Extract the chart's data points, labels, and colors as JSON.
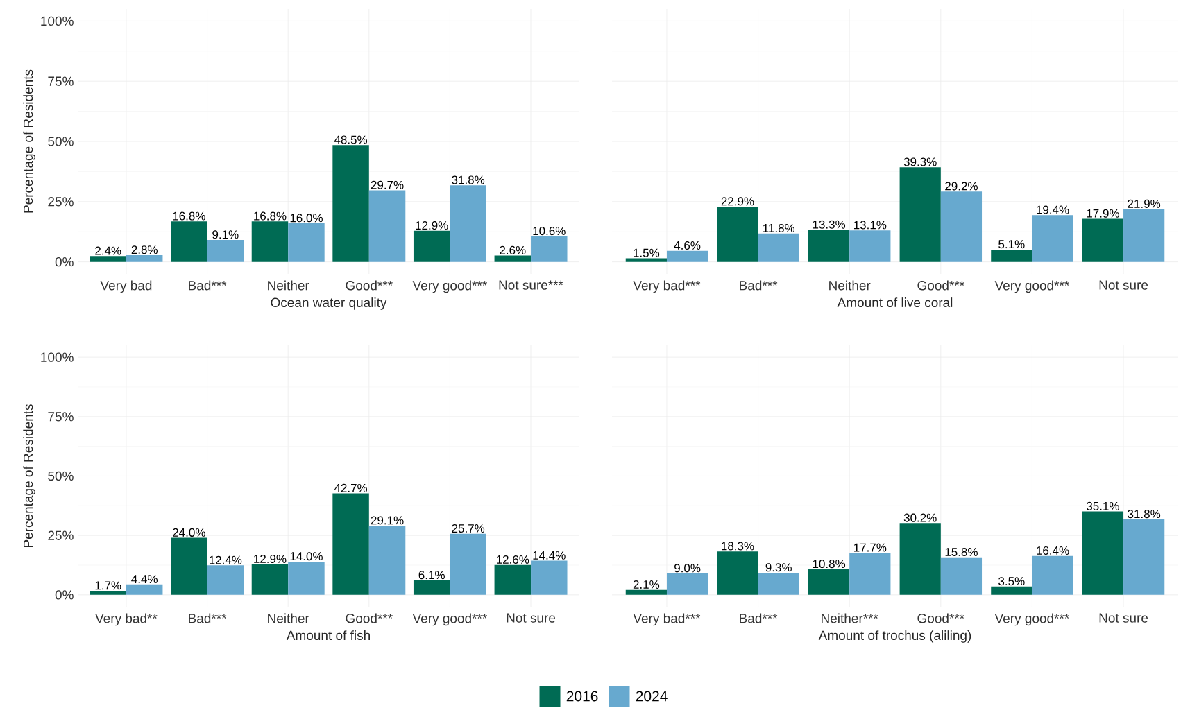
{
  "chart_data": [
    {
      "type": "bar",
      "xlabel": "Ocean water quality",
      "ylabel": "Percentage of Residents",
      "categories": [
        "Very bad",
        "Bad***",
        "Neither",
        "Good***",
        "Very good***",
        "Not sure***"
      ],
      "ylim": [
        -5,
        105
      ],
      "yticks": [
        {
          "value": 0,
          "label": "0%"
        },
        {
          "value": 25,
          "label": "25%"
        },
        {
          "value": 50,
          "label": "50%"
        },
        {
          "value": 75,
          "label": "75%"
        },
        {
          "value": 100,
          "label": "100%"
        }
      ],
      "grid": true,
      "legend": "bottom",
      "series": [
        {
          "name": "2016",
          "color": "#006b54",
          "values": [
            2.4,
            16.8,
            16.8,
            48.5,
            12.9,
            2.6
          ],
          "value_labels": [
            "2.4%",
            "16.8%",
            "16.8%",
            "48.5%",
            "12.9%",
            "2.6%"
          ]
        },
        {
          "name": "2024",
          "color": "#67a9cf",
          "values": [
            2.8,
            9.1,
            16.0,
            29.7,
            31.8,
            10.6
          ],
          "value_labels": [
            "2.8%",
            "9.1%",
            "16.0%",
            "29.7%",
            "31.8%",
            "10.6%"
          ]
        }
      ]
    },
    {
      "type": "bar",
      "xlabel": "Amount of live coral",
      "categories": [
        "Very bad***",
        "Bad***",
        "Neither",
        "Good***",
        "Very good***",
        "Not sure"
      ],
      "ylim": [
        -5,
        105
      ],
      "yticks": [
        {
          "value": 0,
          "label": null
        },
        {
          "value": 25,
          "label": null
        },
        {
          "value": 50,
          "label": null
        },
        {
          "value": 75,
          "label": null
        },
        {
          "value": 100,
          "label": null
        }
      ],
      "tick_labels": "x",
      "grid": true,
      "series": [
        {
          "color": "#006b54",
          "values": [
            1.5,
            22.9,
            13.3,
            39.3,
            5.1,
            17.9
          ],
          "value_labels": [
            "1.5%",
            "22.9%",
            "13.3%",
            "39.3%",
            "5.1%",
            "17.9%"
          ]
        },
        {
          "color": "#67a9cf",
          "values": [
            4.6,
            11.8,
            13.1,
            29.2,
            19.4,
            21.9
          ],
          "value_labels": [
            "4.6%",
            "11.8%",
            "13.1%",
            "29.2%",
            "19.4%",
            "21.9%"
          ]
        }
      ]
    },
    {
      "type": "bar",
      "xlabel": "Amount of fish",
      "ylabel": "Percentage of Residents",
      "categories": [
        "Very bad**",
        "Bad***",
        "Neither",
        "Good***",
        "Very good***",
        "Not sure"
      ],
      "ylim": [
        -5,
        105
      ],
      "yticks": [
        {
          "value": 0,
          "label": "0%"
        },
        {
          "value": 25,
          "label": "25%"
        },
        {
          "value": 50,
          "label": "50%"
        },
        {
          "value": 75,
          "label": "75%"
        },
        {
          "value": 100,
          "label": "100%"
        }
      ],
      "grid": true,
      "series": [
        {
          "color": "#006b54",
          "values": [
            1.7,
            24.0,
            12.9,
            42.7,
            6.1,
            12.6
          ],
          "value_labels": [
            "1.7%",
            "24.0%",
            "12.9%",
            "42.7%",
            "6.1%",
            "12.6%"
          ]
        },
        {
          "color": "#67a9cf",
          "values": [
            4.4,
            12.4,
            14.0,
            29.1,
            25.7,
            14.4
          ],
          "value_labels": [
            "4.4%",
            "12.4%",
            "14.0%",
            "29.1%",
            "25.7%",
            "14.4%"
          ]
        }
      ]
    },
    {
      "type": "bar",
      "xlabel": "Amount of trochus (aliling)",
      "categories": [
        "Very bad***",
        "Bad***",
        "Neither***",
        "Good***",
        "Very good***",
        "Not sure"
      ],
      "ylim": [
        -5,
        105
      ],
      "yticks": [
        {
          "value": 0,
          "label": null
        },
        {
          "value": 25,
          "label": null
        },
        {
          "value": 50,
          "label": null
        },
        {
          "value": 75,
          "label": null
        },
        {
          "value": 100,
          "label": null
        }
      ],
      "tick_labels": "x",
      "grid": true,
      "series": [
        {
          "color": "#006b54",
          "values": [
            2.1,
            18.3,
            10.8,
            30.2,
            3.5,
            35.1
          ],
          "value_labels": [
            "2.1%",
            "18.3%",
            "10.8%",
            "30.2%",
            "3.5%",
            "35.1%"
          ]
        },
        {
          "color": "#67a9cf",
          "values": [
            9.0,
            9.3,
            17.7,
            15.8,
            16.4,
            31.8
          ],
          "value_labels": [
            "9.0%",
            "9.3%",
            "17.7%",
            "15.8%",
            "16.4%",
            "31.8%"
          ]
        }
      ]
    }
  ]
}
